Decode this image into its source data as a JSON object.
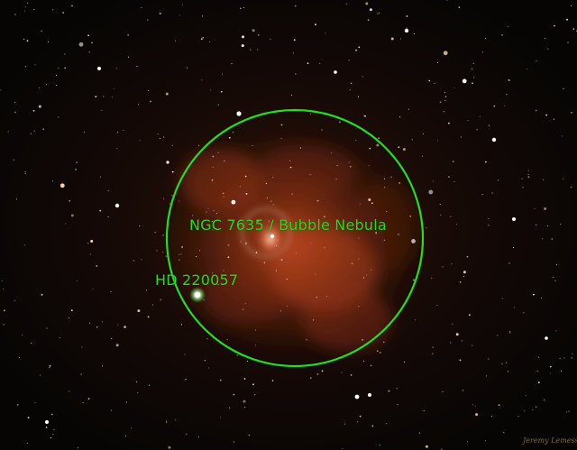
{
  "annotations": {
    "nebula_label": "NGC 7635 / Bubble Nebula",
    "star_label": "HD 220057"
  },
  "signature": "Jeremy Lemesse",
  "colors": {
    "annotation": "#22e01e",
    "sky": "#070605",
    "nebula": "#b8401a"
  }
}
